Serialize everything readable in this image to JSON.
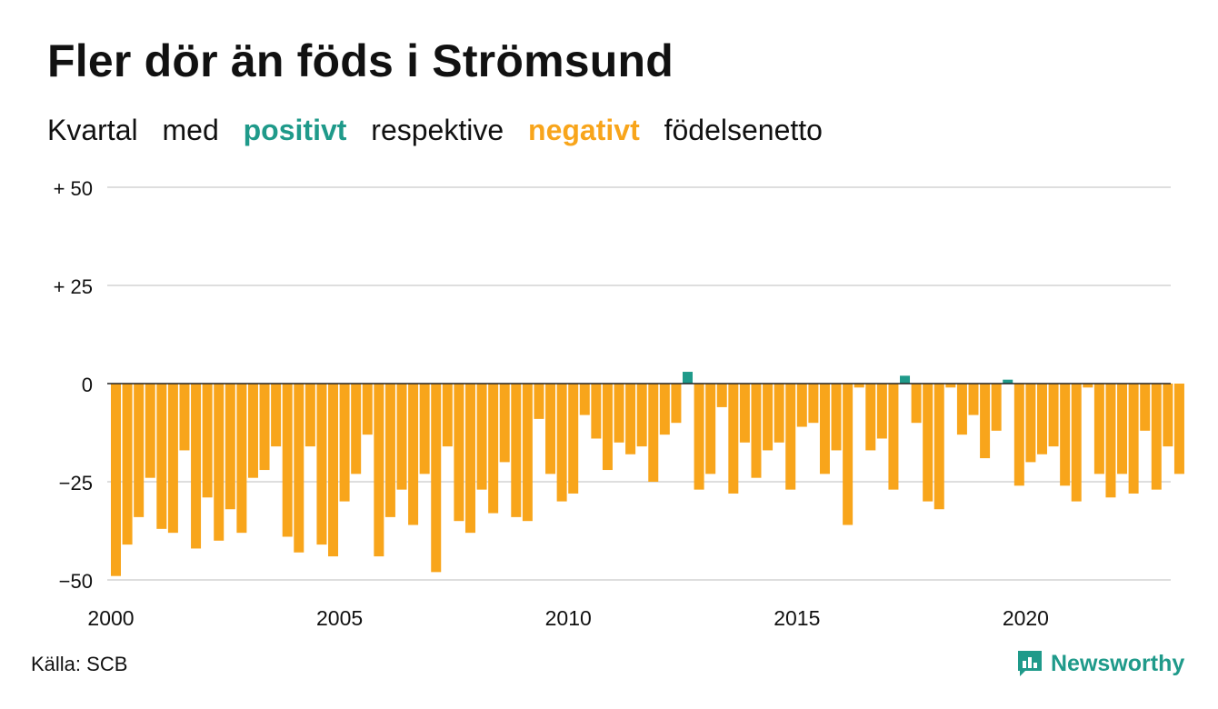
{
  "header": {
    "title": "Fler dör än föds i Strömsund",
    "subtitle_parts": {
      "p1": "Kvartal",
      "p2": "med",
      "positive": "positivt",
      "p3": "respektive",
      "negative": "negativt",
      "p4": "födelsenetto"
    }
  },
  "colors": {
    "positive": "#1f9a8a",
    "negative": "#f8a51b",
    "grid": "#dedede",
    "zero_line": "#222222",
    "text": "#111111"
  },
  "footer": {
    "source": "Källa: SCB",
    "brand": "Newsworthy",
    "brand_icon": "bar-chart-speech-bubble-icon"
  },
  "chart_data": {
    "type": "bar",
    "title": "Fler dör än föds i Strömsund",
    "subtitle": "Kvartal med positivt respektive negativt födelsenetto",
    "xlabel": "",
    "ylabel": "",
    "x_start": "2000",
    "x_end": "2023",
    "x_ticks": [
      "2000",
      "2005",
      "2010",
      "2015",
      "2020"
    ],
    "y_ticks": [
      50,
      25,
      0,
      -25,
      -50
    ],
    "y_tick_labels": [
      "+ 50",
      "+ 25",
      "0",
      "−25",
      "−50"
    ],
    "ylim": [
      -50,
      50
    ],
    "grid": true,
    "legend": "none",
    "values": [
      -49,
      -41,
      -34,
      -24,
      -37,
      -38,
      -17,
      -42,
      -29,
      -40,
      -32,
      -38,
      -24,
      -22,
      -16,
      -39,
      -43,
      -16,
      -41,
      -44,
      -30,
      -23,
      -13,
      -44,
      -34,
      -27,
      -36,
      -23,
      -48,
      -16,
      -35,
      -38,
      -27,
      -33,
      -20,
      -34,
      -35,
      -9,
      -23,
      -30,
      -28,
      -8,
      -14,
      -22,
      -15,
      -18,
      -16,
      -25,
      -13,
      -10,
      3,
      -27,
      -23,
      -6,
      -28,
      -15,
      -24,
      -17,
      -15,
      -27,
      -11,
      -10,
      -23,
      -17,
      -36,
      -1,
      -17,
      -14,
      -27,
      2,
      -10,
      -30,
      -32,
      -1,
      -13,
      -8,
      -19,
      -12,
      1,
      -26,
      -20,
      -18,
      -16,
      -26,
      -30,
      -1,
      -23,
      -29,
      -23,
      -28,
      -12,
      -27,
      -16,
      -23
    ]
  }
}
